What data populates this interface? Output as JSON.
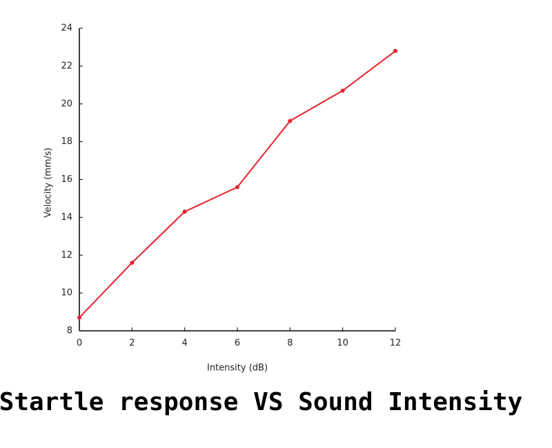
{
  "chart_data": {
    "type": "line",
    "title": "Startle response VS Sound Intensity",
    "x_label": "Intensity (dB)",
    "y_label": "Velocity (mm/s)",
    "x": [
      0,
      2,
      4,
      6,
      8,
      10,
      12
    ],
    "series": [
      {
        "color": "#e8202a",
        "values": [
          8.7,
          11.6,
          14.3,
          15.6,
          19.1,
          20.7,
          22.8
        ]
      }
    ],
    "xlim": [
      0,
      12
    ],
    "xticks": [
      0,
      2,
      4,
      6,
      8,
      10,
      12
    ],
    "ylim": [
      8,
      24
    ],
    "yticks": [
      8,
      10,
      12,
      14,
      16,
      18,
      20,
      22,
      24
    ],
    "grid": false
  }
}
